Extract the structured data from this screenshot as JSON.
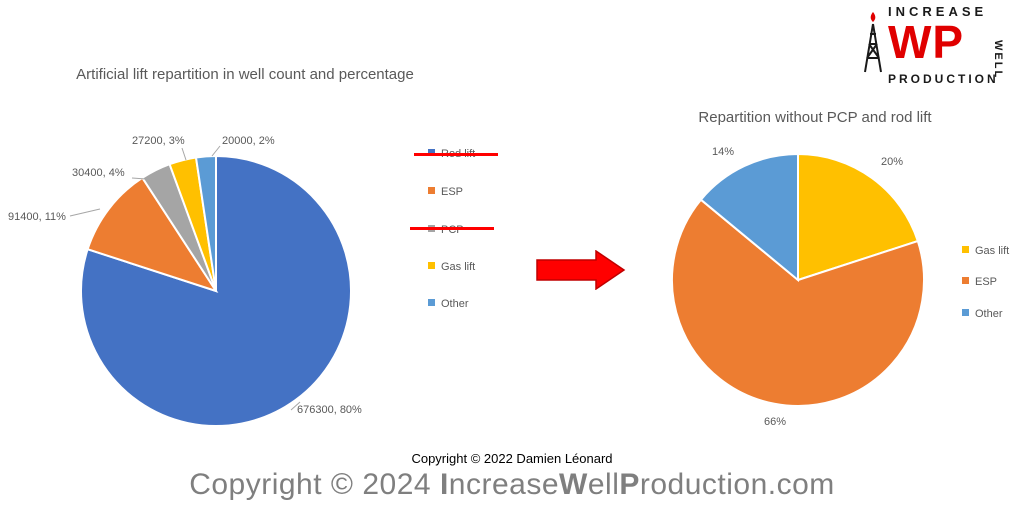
{
  "chart_data": [
    {
      "type": "pie",
      "title": "Artificial lift repartition in well count and percentage",
      "slices": [
        {
          "label": "Rod lift",
          "value": 676300,
          "percent": 80,
          "data_label": "676300, 80%",
          "color": "#4472C4"
        },
        {
          "label": "ESP",
          "value": 91400,
          "percent": 11,
          "data_label": "91400, 11%",
          "color": "#ED7D31"
        },
        {
          "label": "PCP",
          "value": 30400,
          "percent": 4,
          "data_label": "30400, 4%",
          "color": "#A5A5A5"
        },
        {
          "label": "Gas lift",
          "value": 27200,
          "percent": 3,
          "data_label": "27200, 3%",
          "color": "#FFC000"
        },
        {
          "label": "Other",
          "value": 20000,
          "percent": 2,
          "data_label": "20000, 2%",
          "color": "#5B9BD5"
        }
      ],
      "legend": [
        "Rod lift",
        "ESP",
        "PCP",
        "Gas lift",
        "Other"
      ],
      "struck_out_legend": [
        "Rod lift",
        "PCP"
      ]
    },
    {
      "type": "pie",
      "title": "Repartition without PCP and rod lift",
      "slices": [
        {
          "label": "Gas lift",
          "value": 20,
          "data_label": "20%",
          "color": "#FFC000"
        },
        {
          "label": "ESP",
          "value": 66,
          "data_label": "66%",
          "color": "#ED7D31"
        },
        {
          "label": "Other",
          "value": 14,
          "data_label": "14%",
          "color": "#5B9BD5"
        }
      ],
      "legend": [
        "Gas lift",
        "ESP",
        "Other"
      ]
    }
  ],
  "arrow_color": "#FF0000",
  "logo": {
    "top": "INCREASE",
    "middle": "WP",
    "bottom": "PRODUCTION",
    "side": "WELL"
  },
  "copyright_small": "Copyright © 2022 Damien Léonard",
  "copyright_large": {
    "pre": "Copyright © 2024 ",
    "b1": "I",
    "t1": "ncrease",
    "b2": "W",
    "t2": "ell",
    "b3": "P",
    "t3": "roduction.com"
  }
}
